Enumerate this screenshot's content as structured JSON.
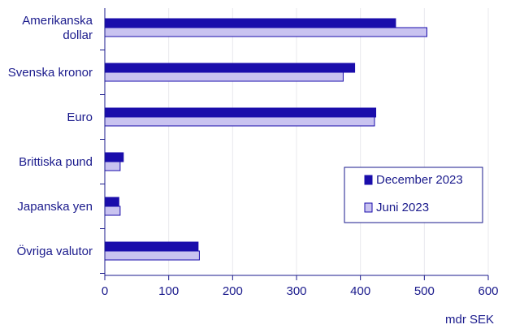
{
  "chart_data": {
    "type": "bar",
    "orientation": "horizontal",
    "categories": [
      [
        "Amerikanska",
        "dollar"
      ],
      [
        "Svenska kronor"
      ],
      [
        "Euro"
      ],
      [
        "Brittiska pund"
      ],
      [
        "Japanska yen"
      ],
      [
        "Övriga valutor"
      ]
    ],
    "series": [
      {
        "name": "December 2023",
        "values": [
          455,
          391,
          424,
          29,
          22,
          146
        ],
        "color": "#1a0dab"
      },
      {
        "name": "Juni 2023",
        "values": [
          504,
          373,
          422,
          24,
          24,
          148
        ],
        "color": "#c9c3f0"
      }
    ],
    "xlim": [
      0,
      600
    ],
    "xticks": [
      0,
      100,
      200,
      300,
      400,
      500,
      600
    ],
    "xunit": "mdr SEK",
    "grid": "vertical",
    "legend_position": "right"
  },
  "colors": {
    "text": "#1a1a8c",
    "axis": "#1a1a8c",
    "grid": "#e8e8ee",
    "bar_outline": "#1a0dab"
  }
}
